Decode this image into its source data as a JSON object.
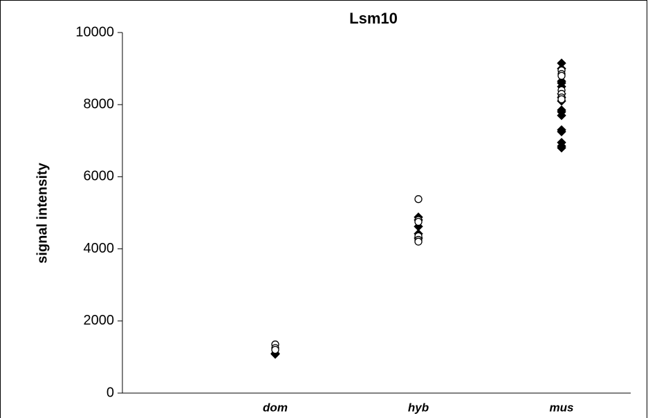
{
  "chart_data": {
    "type": "strip",
    "title": "Lsm10",
    "y_label": "signal intensity",
    "categories": [
      "dom",
      "hyb",
      "mus"
    ],
    "ylim": [
      0,
      10000
    ],
    "yticks": [
      0,
      2000,
      4000,
      6000,
      8000,
      10000
    ],
    "series": [
      {
        "marker": "diamond",
        "color": "#000000",
        "values": [
          [
            1080,
            1100
          ],
          [
            4880,
            4800,
            4620,
            4420,
            4300
          ],
          [
            9150,
            9000,
            8650,
            8600,
            8500,
            8300,
            8200,
            8100,
            7850,
            7800,
            7700,
            7300,
            7250,
            6950,
            6850,
            6800
          ]
        ]
      },
      {
        "marker": "circle",
        "color": "#ffffff",
        "values": [
          [
            1350,
            1250,
            1200
          ],
          [
            5380,
            4800,
            4750,
            4350,
            4250,
            4200
          ],
          [
            8950,
            8850,
            8800,
            8400,
            8300,
            8200,
            8150
          ]
        ]
      }
    ]
  }
}
